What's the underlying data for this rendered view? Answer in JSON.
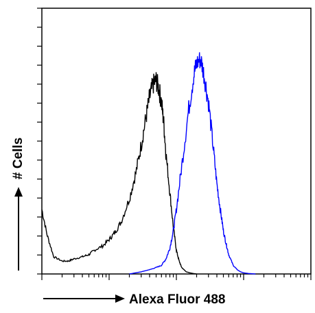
{
  "chart_data": {
    "type": "line",
    "title": "",
    "xlabel": "Alexa Fluor 488",
    "ylabel": "# Cells",
    "x_scale": "log",
    "xlim": [
      1,
      10000
    ],
    "tick_labels_shown": false,
    "legend": "none",
    "series": [
      {
        "color": "#000000",
        "x": [
          1.0,
          1.2,
          1.5,
          2.0,
          2.5,
          3.0,
          4.0,
          5.0,
          6.0,
          8.0,
          10,
          12,
          15,
          20,
          25,
          30,
          35,
          40,
          45,
          50,
          55,
          60,
          65,
          70,
          80,
          90,
          100,
          110,
          120,
          140,
          160,
          180,
          200
        ],
        "y": [
          30,
          18,
          8,
          6,
          6,
          7,
          8,
          9,
          11,
          13,
          16,
          19,
          24,
          35,
          47,
          60,
          72,
          82,
          88,
          90,
          86,
          80,
          70,
          56,
          38,
          22,
          11,
          6,
          3,
          1,
          0.5,
          0.2,
          0
        ]
      },
      {
        "color": "#0000ff",
        "x": [
          20,
          30,
          40,
          50,
          60,
          70,
          80,
          90,
          100,
          120,
          150,
          180,
          200,
          230,
          260,
          300,
          350,
          400,
          450,
          500,
          550,
          600,
          700,
          800,
          900,
          1000,
          1200,
          1500
        ],
        "y": [
          0,
          1,
          2,
          3,
          4,
          7,
          12,
          20,
          30,
          50,
          75,
          92,
          98,
          100,
          92,
          80,
          60,
          42,
          30,
          20,
          14,
          9,
          4,
          2,
          1,
          0.5,
          0.2,
          0
        ]
      }
    ]
  }
}
